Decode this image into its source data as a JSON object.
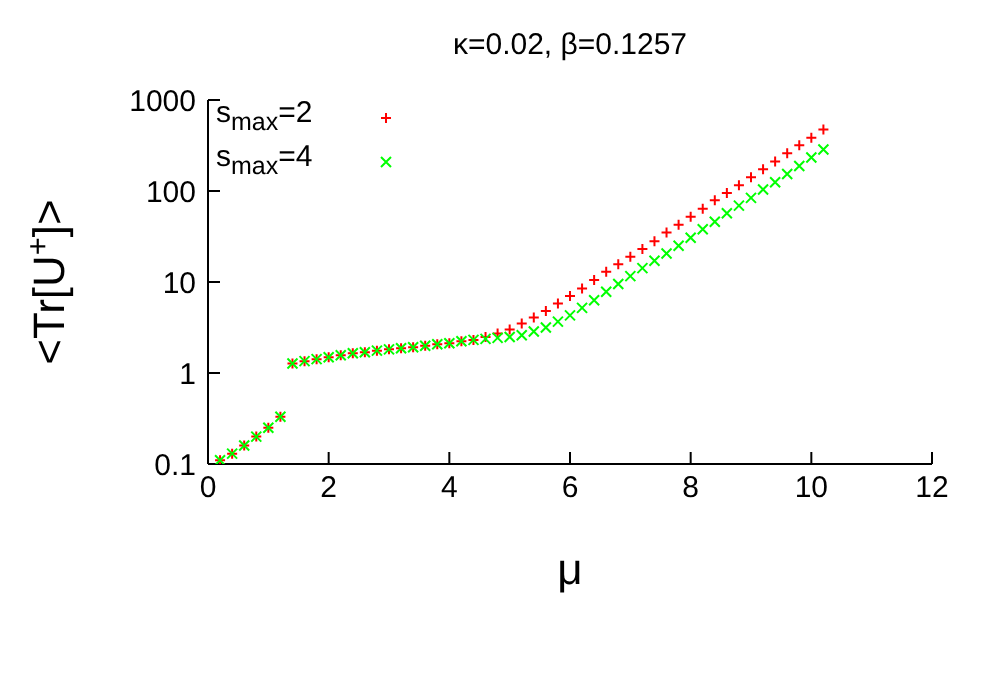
{
  "chart_data": {
    "type": "scatter",
    "title": "κ=0.02, β=0.1257",
    "xlabel": "μ",
    "ylabel": "<Tr[U$^{+}$]>",
    "x": [
      0.2,
      0.4,
      0.6,
      0.8,
      1.0,
      1.2,
      1.4,
      1.6,
      1.8,
      2.0,
      2.2,
      2.4,
      2.6,
      2.8,
      3.0,
      3.2,
      3.4,
      3.6,
      3.8,
      4.0,
      4.2,
      4.4,
      4.6,
      4.8,
      5.0,
      5.2,
      5.4,
      5.6,
      5.8,
      6.0,
      6.2,
      6.4,
      6.6,
      6.8,
      7.0,
      7.2,
      7.4,
      7.6,
      7.8,
      8.0,
      8.2,
      8.4,
      8.6,
      8.8,
      9.0,
      9.2,
      9.4,
      9.6,
      9.8,
      10.0,
      10.2
    ],
    "series": [
      {
        "name": "s$_{max}$=2",
        "color": "#ff0000",
        "marker": "cross",
        "values": [
          0.11,
          0.13,
          0.16,
          0.2,
          0.25,
          0.33,
          1.27,
          1.35,
          1.42,
          1.49,
          1.57,
          1.65,
          1.69,
          1.76,
          1.82,
          1.87,
          1.92,
          1.99,
          2.07,
          2.12,
          2.23,
          2.31,
          2.49,
          2.72,
          3.0,
          3.5,
          4.06,
          4.8,
          5.8,
          7.0,
          8.5,
          10.5,
          13,
          15.7,
          19,
          23,
          28,
          35,
          42.6,
          52,
          64,
          79,
          95,
          116,
          142,
          173,
          211,
          260,
          318,
          385,
          475
        ]
      },
      {
        "name": "s$_{max}$=4",
        "color": "#00ff00",
        "marker": "x",
        "values": [
          0.11,
          0.13,
          0.16,
          0.2,
          0.25,
          0.33,
          1.27,
          1.35,
          1.42,
          1.49,
          1.57,
          1.65,
          1.69,
          1.76,
          1.82,
          1.87,
          1.92,
          1.99,
          2.07,
          2.12,
          2.23,
          2.31,
          2.37,
          2.43,
          2.49,
          2.6,
          2.86,
          3.16,
          3.67,
          4.3,
          5.2,
          6.3,
          7.8,
          9.5,
          11.6,
          14.2,
          17.1,
          20.6,
          25,
          30.7,
          38,
          46,
          57,
          69,
          84,
          104,
          125,
          154,
          188,
          233,
          286
        ]
      }
    ],
    "xlim": [
      0,
      12
    ],
    "xticks": [
      0,
      2,
      4,
      6,
      8,
      10,
      12
    ],
    "ylim": [
      0.1,
      1000
    ],
    "yticks": [
      0.1,
      1,
      10,
      100,
      1000
    ],
    "log": "y",
    "legend": "top left",
    "grid": false
  }
}
